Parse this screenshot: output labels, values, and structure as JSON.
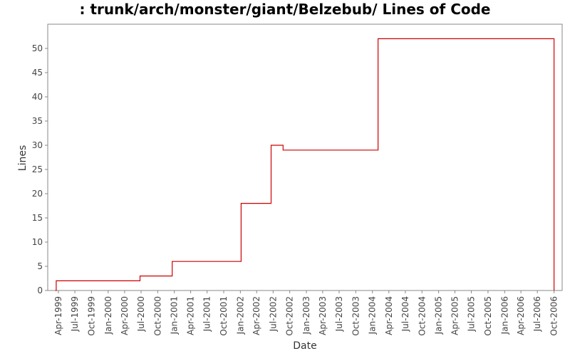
{
  "chart_data": {
    "type": "line",
    "title": ": trunk/arch/monster/giant/Belzebub/ Lines of Code",
    "xlabel": "Date",
    "ylabel": "Lines",
    "ylim": [
      0,
      55
    ],
    "yticks": [
      0,
      5,
      10,
      15,
      20,
      25,
      30,
      35,
      40,
      45,
      50
    ],
    "xlim": [
      "1999-02-01",
      "2006-11-15"
    ],
    "xticks": [
      "Apr-1999",
      "Jul-1999",
      "Oct-1999",
      "Jan-2000",
      "Apr-2000",
      "Jul-2000",
      "Oct-2000",
      "Jan-2001",
      "Apr-2001",
      "Jul-2001",
      "Oct-2001",
      "Jan-2002",
      "Apr-2002",
      "Jul-2002",
      "Oct-2002",
      "Jan-2003",
      "Apr-2003",
      "Jul-2003",
      "Oct-2003",
      "Jan-2004",
      "Apr-2004",
      "Jul-2004",
      "Oct-2004",
      "Jan-2005",
      "Apr-2005",
      "Jul-2005",
      "Oct-2005",
      "Jan-2006",
      "Apr-2006",
      "Jul-2006",
      "Oct-2006"
    ],
    "grid": false,
    "legend": "none",
    "colors": {
      "series": "#cc0000",
      "axis": "#888888"
    },
    "series": [
      {
        "step": "post",
        "x": [
          "1999-03-15",
          "1999-03-20",
          "2000-06-25",
          "2000-12-20",
          "2002-01-05",
          "2002-06-20",
          "2002-08-25",
          "2004-02-01",
          "2006-10-01"
        ],
        "y": [
          0,
          2,
          3,
          6,
          18,
          30,
          29,
          52,
          0
        ]
      }
    ]
  }
}
